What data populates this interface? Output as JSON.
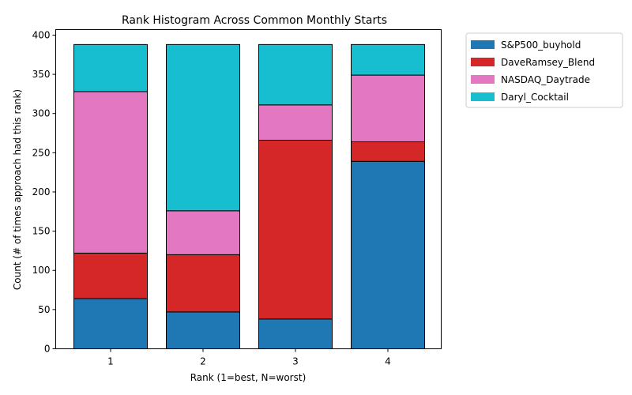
{
  "chart_data": {
    "type": "bar",
    "stacked": true,
    "title": "Rank Histogram Across Common Monthly Starts",
    "xlabel": "Rank (1=best, N=worst)",
    "ylabel": "Count (# of times approach had this rank)",
    "categories": [
      "1",
      "2",
      "3",
      "4"
    ],
    "ylim": [
      0,
      407
    ],
    "yticks": [
      0,
      50,
      100,
      150,
      200,
      250,
      300,
      350,
      400
    ],
    "grid": false,
    "legend_position": "outside-top-right",
    "series": [
      {
        "name": "S&P500_buyhold",
        "color": "#1f77b4",
        "values": [
          64,
          47,
          38,
          239
        ]
      },
      {
        "name": "DaveRamsey_Blend",
        "color": "#d62728",
        "values": [
          58,
          73,
          228,
          25
        ]
      },
      {
        "name": "NASDAQ_Daytrade",
        "color": "#e377c2",
        "values": [
          206,
          56,
          45,
          85
        ]
      },
      {
        "name": "Daryl_Cocktail",
        "color": "#17becf",
        "values": [
          60,
          212,
          77,
          39
        ]
      }
    ]
  }
}
